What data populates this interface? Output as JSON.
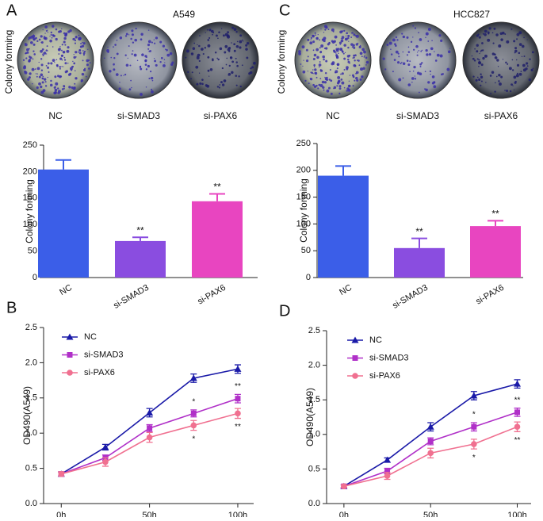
{
  "photos": [
    {
      "panel": "A",
      "title": "A549",
      "ylabel": "Colony forming",
      "images": [
        "NC",
        "si-SMAD3",
        "si-PAX6"
      ]
    },
    {
      "panel": "C",
      "title": "HCC827",
      "ylabel": "Colony forming",
      "images": [
        "NC",
        "si-SMAD3",
        "si-PAX6"
      ]
    }
  ],
  "chart_data": [
    {
      "type": "bar",
      "ylabel": "Colony forming",
      "categories": [
        "NC",
        "si-SMAD3",
        "si-PAX6"
      ],
      "values": [
        204,
        69,
        144
      ],
      "errors": [
        18,
        7,
        14
      ],
      "colors": [
        "#3b5ee8",
        "#8a4de0",
        "#e845c0"
      ],
      "significance": [
        null,
        "**",
        "**"
      ],
      "ylim": [
        0,
        250
      ],
      "yticks": [
        0,
        50,
        100,
        150,
        200,
        250
      ]
    },
    {
      "type": "bar",
      "ylabel": "Colony forming",
      "categories": [
        "NC",
        "si-SMAD3",
        "si-PAX6"
      ],
      "values": [
        190,
        55,
        96
      ],
      "errors": [
        18,
        18,
        10
      ],
      "colors": [
        "#3b5ee8",
        "#8a4de0",
        "#e845c0"
      ],
      "significance": [
        null,
        "**",
        "**"
      ],
      "ylim": [
        0,
        250
      ],
      "yticks": [
        0,
        50,
        100,
        150,
        200,
        250
      ]
    },
    {
      "type": "line",
      "panel": "B",
      "ylabel": "OD490(A549)",
      "x": [
        0,
        25,
        50,
        75,
        100
      ],
      "xlim": [
        -10,
        109
      ],
      "xticks": [
        {
          "value": 0,
          "label": "0h"
        },
        {
          "value": 50,
          "label": "50h"
        },
        {
          "value": 100,
          "label": "100h"
        }
      ],
      "ylim": [
        0,
        2.5
      ],
      "yticks": [
        {
          "value": 0,
          "label": "0.0"
        },
        0.5,
        {
          "value": 1,
          "label": "1.0"
        },
        1.5,
        {
          "value": 2,
          "label": "2.0"
        },
        2.5
      ],
      "legend": "upper left",
      "series": [
        {
          "name": "NC",
          "color": "#1a1aa8",
          "marker": "triangle",
          "values": [
            0.42,
            0.8,
            1.29,
            1.78,
            1.91
          ],
          "errors": [
            0.03,
            0.04,
            0.06,
            0.06,
            0.06
          ],
          "significance": [
            null,
            null,
            null,
            null,
            null
          ]
        },
        {
          "name": "si-SMAD3",
          "color": "#b030c8",
          "marker": "square",
          "values": [
            0.42,
            0.65,
            1.07,
            1.28,
            1.49
          ],
          "errors": [
            0.03,
            0.04,
            0.05,
            0.05,
            0.06
          ],
          "significance": [
            null,
            null,
            null,
            "*",
            "**"
          ],
          "sig_side": "above"
        },
        {
          "name": "si-PAX6",
          "color": "#f07090",
          "marker": "circle",
          "values": [
            0.42,
            0.59,
            0.94,
            1.11,
            1.28
          ],
          "errors": [
            0.03,
            0.06,
            0.07,
            0.07,
            0.07
          ],
          "significance": [
            null,
            null,
            null,
            "*",
            "**"
          ],
          "sig_side": "below"
        }
      ]
    },
    {
      "type": "line",
      "panel": "D",
      "ylabel": "OD490(A549)",
      "x": [
        0,
        25,
        50,
        75,
        100
      ],
      "xlim": [
        -10,
        108
      ],
      "xticks": [
        {
          "value": 0,
          "label": "0h"
        },
        {
          "value": 50,
          "label": "50h"
        },
        {
          "value": 100,
          "label": "100h"
        }
      ],
      "ylim": [
        0,
        2.5
      ],
      "yticks": [
        {
          "value": 0,
          "label": "0.0"
        },
        0.5,
        {
          "value": 1,
          "label": "1.0"
        },
        1.5,
        {
          "value": 2,
          "label": "2.0"
        },
        2.5
      ],
      "legend": "upper left",
      "series": [
        {
          "name": "NC",
          "color": "#1a1aa8",
          "marker": "triangle",
          "values": [
            0.25,
            0.63,
            1.11,
            1.56,
            1.73
          ],
          "errors": [
            0.02,
            0.03,
            0.06,
            0.06,
            0.06
          ],
          "significance": [
            null,
            null,
            null,
            null,
            null
          ]
        },
        {
          "name": "si-SMAD3",
          "color": "#b030c8",
          "marker": "square",
          "values": [
            0.25,
            0.47,
            0.9,
            1.11,
            1.32
          ],
          "errors": [
            0.02,
            0.04,
            0.05,
            0.06,
            0.06
          ],
          "significance": [
            null,
            null,
            null,
            "*",
            "**"
          ],
          "sig_side": "above"
        },
        {
          "name": "si-PAX6",
          "color": "#f07090",
          "marker": "circle",
          "values": [
            0.25,
            0.4,
            0.73,
            0.86,
            1.11
          ],
          "errors": [
            0.02,
            0.05,
            0.07,
            0.07,
            0.07
          ],
          "significance": [
            null,
            null,
            null,
            "*",
            "**"
          ],
          "sig_side": "below"
        }
      ]
    }
  ]
}
